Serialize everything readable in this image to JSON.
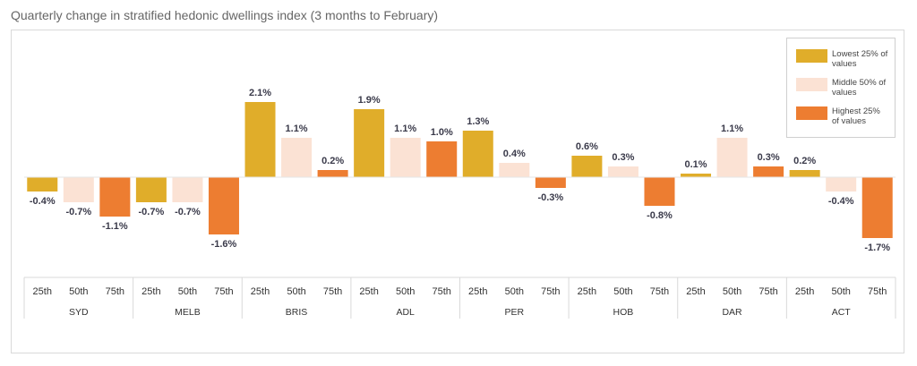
{
  "title": "Quarterly change in stratified hedonic dwellings index (3 months to February)",
  "colors": {
    "lowest": "#E0AD2A",
    "middle": "#FBE2D4",
    "highest": "#ED7D31"
  },
  "legend": [
    {
      "label": "Lowest 25% of values",
      "color": "#E0AD2A"
    },
    {
      "label": "Middle 50% of values",
      "color": "#FBE2D4"
    },
    {
      "label": "Highest 25% of values",
      "color": "#ED7D31"
    }
  ],
  "chart_data": {
    "type": "bar",
    "title": "Quarterly change in stratified hedonic dwellings index (3 months to February)",
    "xlabel": "",
    "ylabel": "",
    "unit": "%",
    "grid": false,
    "legend_position": "top-right",
    "sub_categories": [
      "25th",
      "50th",
      "75th"
    ],
    "groups": [
      {
        "name": "SYD",
        "values": [
          -0.4,
          -0.7,
          -1.1
        ]
      },
      {
        "name": "MELB",
        "values": [
          -0.7,
          -0.7,
          -1.6
        ]
      },
      {
        "name": "BRIS",
        "values": [
          2.1,
          1.1,
          0.2
        ]
      },
      {
        "name": "ADL",
        "values": [
          1.9,
          1.1,
          1.0
        ]
      },
      {
        "name": "PER",
        "values": [
          1.3,
          0.4,
          -0.3
        ]
      },
      {
        "name": "HOB",
        "values": [
          0.6,
          0.3,
          -0.8
        ]
      },
      {
        "name": "DAR",
        "values": [
          0.1,
          1.1,
          0.3
        ]
      },
      {
        "name": "ACT",
        "values": [
          0.2,
          -0.4,
          -1.7
        ]
      }
    ],
    "labels": [
      [
        "-0.4%",
        "-0.7%",
        "-1.1%"
      ],
      [
        "-0.7%",
        "-0.7%",
        "-1.6%"
      ],
      [
        "2.1%",
        "1.1%",
        "0.2%"
      ],
      [
        "1.9%",
        "1.1%",
        "1.0%"
      ],
      [
        "1.3%",
        "0.4%",
        "-0.3%"
      ],
      [
        "0.6%",
        "0.3%",
        "-0.8%"
      ],
      [
        "0.1%",
        "1.1%",
        "0.3%"
      ],
      [
        "0.2%",
        "-0.4%",
        "-1.7%"
      ]
    ]
  }
}
